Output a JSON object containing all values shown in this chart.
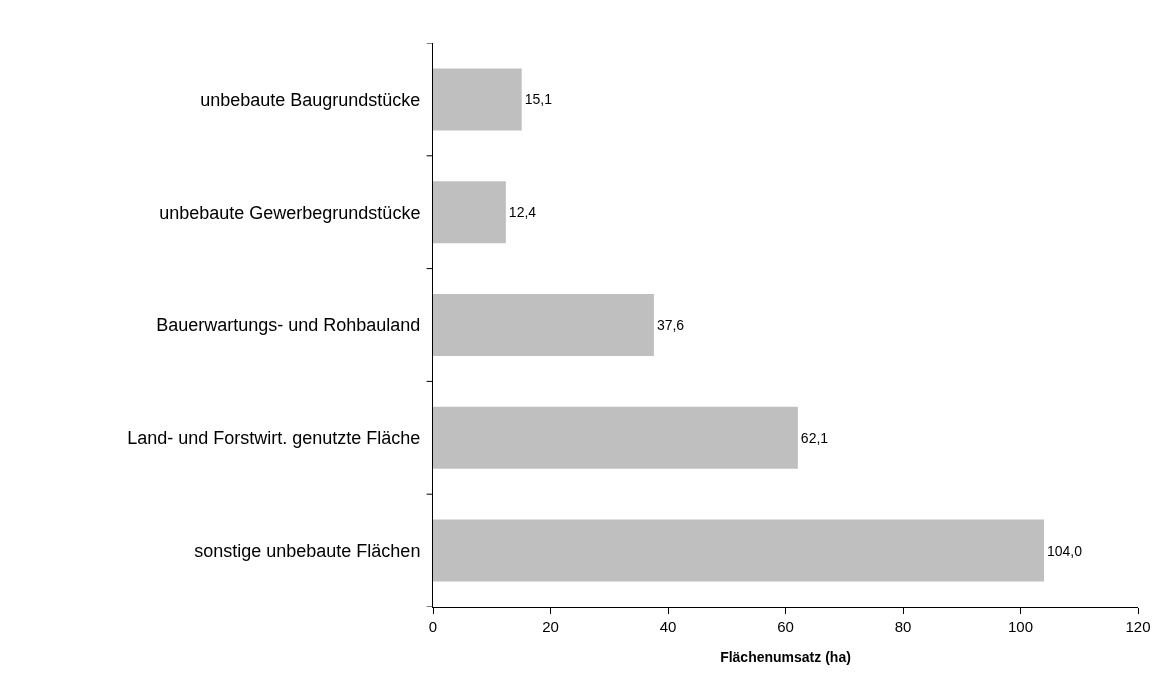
{
  "chart_data": {
    "type": "bar",
    "orientation": "horizontal",
    "categories": [
      "unbebaute Baugrundstücke",
      "unbebaute Gewerbegrundstücke",
      "Bauerwartungs- und Rohbauland",
      "Land- und Forstwirt. genutzte Fläche",
      "sonstige unbebaute Flächen"
    ],
    "values": [
      15.1,
      12.4,
      37.6,
      62.1,
      104.0
    ],
    "value_labels": [
      "15,1",
      "12,4",
      "37,6",
      "62,1",
      "104,0"
    ],
    "color": "#bfbfbf",
    "xlabel": "Flächenumsatz (ha)",
    "xlim": [
      0,
      120
    ],
    "xticks": [
      0,
      20,
      40,
      60,
      80,
      100,
      120
    ]
  }
}
